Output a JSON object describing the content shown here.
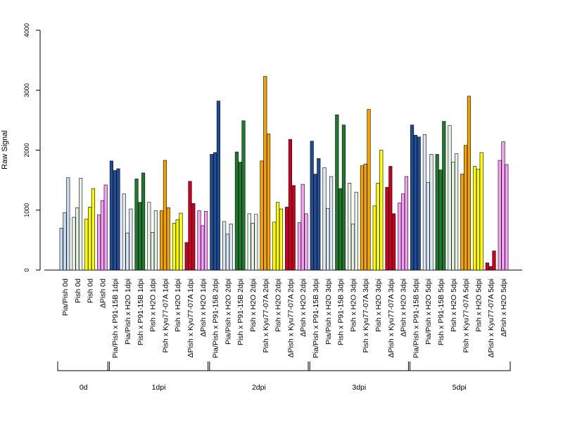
{
  "chart_data": {
    "type": "bar",
    "title": "",
    "xlabel": "",
    "ylabel": "Raw Signal",
    "ylim": [
      0,
      4000
    ],
    "yticks": [
      0,
      1000,
      2000,
      3000,
      4000
    ],
    "grid": false,
    "colors": {
      "Pia/Pish": "#c6dbef",
      "Pia/Pish x P91-15B": "#1f4e96",
      "Pia/Pish x H2O": "#dbe7f3",
      "Pish x P91-15B": "#1f7a2e",
      "Pish x H2O": "#e6f2e3",
      "Pish": "#e6f2e3",
      "Pish x Kyu77-07A": "#f5a300",
      "Pish x H2O yellow": "#ffff00",
      "ΔPish x Kyu77-07A": "#cc0022",
      "ΔPish": "#f6a0f6"
    },
    "categories": [
      "Pia/Pish 0d",
      "Pish 0d",
      "Pish 0d",
      "ΔPish 0d",
      "Pia/Pish x P91-15B 1dpi",
      "Pia/Pish x H2O 1dpi",
      "Pish x P91-15B 1dpi",
      "Pish x H2O 1dpi",
      "Pish x Kyu77-07A 1dpi",
      "Pish x H2O 1dpi",
      "ΔPish x Kyu77-07A 1dpi",
      "ΔPish x H2O 1dpi",
      "Pia/Pish x P91-15B 2dpi",
      "Pia/Pish x H2O 2dpi",
      "Pish x P91-15B 2dpi",
      "Pish x H2O 2dpi",
      "Pish x Kyu77-07A 2dpi",
      "Pish x H2O 2dpi",
      "ΔPish x Kyu77-07A 2dpi",
      "ΔPish x H2O 2dpi",
      "Pia/Pish x P91-15B 3dpi",
      "Pia/Pish x H2O 3dpi",
      "Pish x P91-15B 3dpi",
      "Pish x H2O 3dpi",
      "Pish x Kyu77-07A 3dpi",
      "Pish x H2O 3dpi",
      "ΔPish x Kyu77-07A 3dpi",
      "ΔPish x H2O 3dpi",
      "Pia/Pish x P91-15B 5dpi",
      "Pia/Pish x H2O 5dpi",
      "Pish x P91-15B 5dpi",
      "Pish x H2O 5dpi",
      "Pish x Kyu77-07A 5dpi",
      "Pish x H2O 5dpi",
      "ΔPish x Kyu77-07A 5dpi",
      "ΔPish x H2O 5dpi"
    ],
    "group_colors": [
      "#c6dbef",
      "#e6f2e3",
      "#ffff00",
      "#f6a0f6",
      "#1f4e96",
      "#dbe7f3",
      "#1f7a2e",
      "#e6f2e3",
      "#f5a300",
      "#ffff00",
      "#cc0022",
      "#f6a0f6",
      "#1f4e96",
      "#dbe7f3",
      "#1f7a2e",
      "#e6f2e3",
      "#f5a300",
      "#ffff00",
      "#cc0022",
      "#f6a0f6",
      "#1f4e96",
      "#dbe7f3",
      "#1f7a2e",
      "#e6f2e3",
      "#f5a300",
      "#ffff00",
      "#cc0022",
      "#f6a0f6",
      "#1f4e96",
      "#dbe7f3",
      "#1f7a2e",
      "#e6f2e3",
      "#f5a300",
      "#ffff00",
      "#cc0022",
      "#f6a0f6"
    ],
    "values": [
      [
        700,
        960,
        1540
      ],
      [
        880,
        1040,
        1530
      ],
      [
        850,
        1050,
        1360
      ],
      [
        920,
        1160,
        1420
      ],
      [
        1820,
        1660,
        1690
      ],
      [
        1270,
        620,
        1020
      ],
      [
        1520,
        1130,
        1620
      ],
      [
        1130,
        630,
        990
      ],
      [
        990,
        1830,
        1040
      ],
      [
        780,
        840,
        950
      ],
      [
        460,
        1480,
        1110
      ],
      [
        990,
        740,
        980
      ],
      [
        1930,
        1960,
        2820
      ],
      [
        810,
        600,
        770
      ],
      [
        1970,
        1800,
        2490
      ],
      [
        940,
        780,
        930
      ],
      [
        1820,
        3230,
        2270
      ],
      [
        800,
        1130,
        1020
      ],
      [
        1050,
        2180,
        1410
      ],
      [
        790,
        1430,
        940
      ],
      [
        2150,
        1600,
        1860
      ],
      [
        1710,
        1030,
        1560
      ],
      [
        2590,
        1360,
        2420
      ],
      [
        1450,
        770,
        1300
      ],
      [
        1740,
        1770,
        2680
      ],
      [
        1070,
        1450,
        2000
      ],
      [
        1380,
        1730,
        940
      ],
      [
        1120,
        1270,
        1560
      ],
      [
        2420,
        2250,
        2220
      ],
      [
        2260,
        1460,
        1930
      ],
      [
        1930,
        1670,
        2480
      ],
      [
        2410,
        1800,
        1940
      ],
      [
        1600,
        2080,
        2900
      ],
      [
        1730,
        1680,
        1960
      ],
      [
        120,
        60,
        320
      ],
      [
        1830,
        2140,
        1760
      ]
    ],
    "time_groups": [
      {
        "label": "0d",
        "from": 0,
        "to": 3
      },
      {
        "label": "1dpi",
        "from": 4,
        "to": 11
      },
      {
        "label": "2dpi",
        "from": 12,
        "to": 19
      },
      {
        "label": "3dpi",
        "from": 20,
        "to": 27
      },
      {
        "label": "5dpi",
        "from": 28,
        "to": 35
      }
    ]
  }
}
